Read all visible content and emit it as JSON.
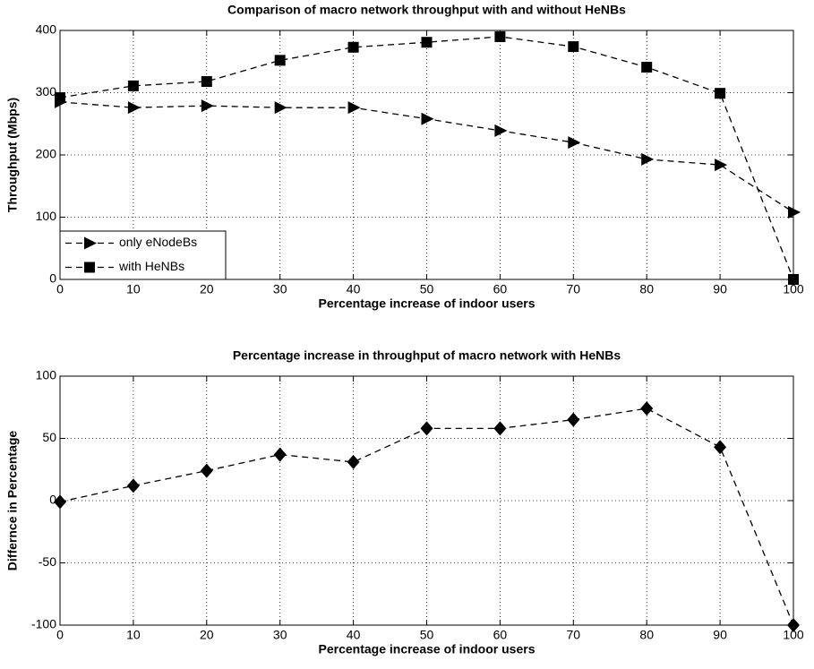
{
  "chart_data": [
    {
      "type": "line",
      "title": "Comparison of macro network throughput with and without HeNBs",
      "x_label": "Percentage increase of indoor users",
      "y_label": "Throughput (Mbps)",
      "x": [
        0,
        10,
        20,
        30,
        40,
        50,
        60,
        70,
        80,
        90,
        100
      ],
      "series": [
        {
          "name": "only eNodeBs",
          "color": "#000000",
          "marker": "triangle-right",
          "values": [
            285,
            276,
            279,
            276,
            276,
            258,
            239,
            220,
            193,
            184,
            108
          ]
        },
        {
          "name": "with HeNBs",
          "color": "#000000",
          "marker": "square",
          "values": [
            292,
            311,
            318,
            352,
            373,
            381,
            390,
            374,
            341,
            299,
            0
          ]
        }
      ],
      "xlim": [
        0,
        100
      ],
      "xticks": [
        0,
        10,
        20,
        30,
        40,
        50,
        60,
        70,
        80,
        90,
        100
      ],
      "ylim": [
        0,
        400
      ],
      "yticks": [
        0,
        100,
        200,
        300,
        400
      ],
      "grid": true,
      "legend": "lower left"
    },
    {
      "type": "line",
      "title": "Percentage increase in throughput of macro network with HeNBs",
      "x_label": "Percentage increase of indoor users",
      "y_label": "Differnce in Percentage",
      "x": [
        0,
        10,
        20,
        30,
        40,
        50,
        60,
        70,
        80,
        90,
        100
      ],
      "series": [
        {
          "color": "#000000",
          "marker": "diamond",
          "values": [
            -1,
            12,
            24,
            37,
            31,
            58,
            58,
            65,
            74,
            43,
            -100
          ]
        }
      ],
      "xlim": [
        0,
        100
      ],
      "xticks": [
        0,
        10,
        20,
        30,
        40,
        50,
        60,
        70,
        80,
        90,
        100
      ],
      "ylim": [
        -100,
        100
      ],
      "yticks": [
        -100,
        -50,
        0,
        50,
        100
      ],
      "grid": true
    }
  ]
}
